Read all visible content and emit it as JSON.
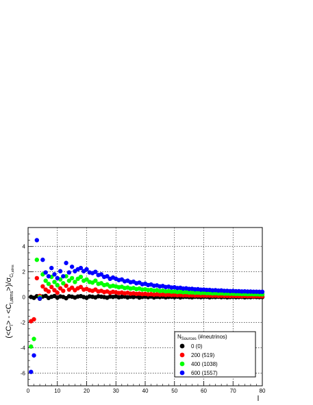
{
  "chart_data": {
    "type": "scatter",
    "xlabel": "l",
    "ylabel": {
      "main": "(<C",
      "sub1": "l",
      "mid": "> - <C",
      "sub2": "l,atms",
      "end": ">)/σ",
      "sub3": "C",
      "sub4": "l,atms"
    },
    "xlim": [
      0,
      80
    ],
    "ylim": [
      -7,
      5.5
    ],
    "x_ticks": [
      0,
      10,
      20,
      30,
      40,
      50,
      60,
      70,
      80
    ],
    "y_ticks": [
      -6,
      -4,
      -2,
      0,
      2,
      4
    ],
    "grid": true,
    "legend": {
      "placement": "bottom-right",
      "header_main": "N",
      "header_sub": "Sources",
      "header_rest": " (#neutrinos)"
    },
    "series": [
      {
        "name": "0 (0)",
        "color": "#000000",
        "x": [
          1,
          2,
          3,
          4,
          5,
          6,
          7,
          8,
          9,
          10,
          11,
          12,
          13,
          14,
          15,
          16,
          17,
          18,
          19,
          20,
          21,
          22,
          23,
          24,
          25,
          26,
          27,
          28,
          29,
          30,
          31,
          32,
          33,
          34,
          35,
          36,
          37,
          38,
          39,
          40,
          41,
          42,
          43,
          44,
          45,
          46,
          47,
          48,
          49,
          50,
          51,
          52,
          53,
          54,
          55,
          56,
          57,
          58,
          59,
          60,
          61,
          62,
          63,
          64,
          65,
          66,
          67,
          68,
          69,
          70,
          71,
          72,
          73,
          74,
          75,
          76,
          77,
          78,
          79,
          80
        ],
        "y": [
          0.02,
          -0.05,
          0.08,
          -0.12,
          0.05,
          0.1,
          -0.06,
          0.03,
          0.09,
          -0.04,
          0.06,
          0.02,
          -0.08,
          0.07,
          0.04,
          -0.03,
          0.05,
          0.08,
          0.01,
          -0.05,
          0.06,
          0.03,
          -0.02,
          0.07,
          0.04,
          0.01,
          -0.04,
          0.05,
          0.02,
          0.06,
          -0.01,
          0.03,
          0.05,
          -0.02,
          0.04,
          0.01,
          0.06,
          -0.03,
          0.02,
          0.04,
          0.0,
          0.05,
          -0.02,
          0.03,
          0.01,
          0.04,
          -0.01,
          0.02,
          0.03,
          0.0,
          0.04,
          -0.02,
          0.02,
          0.03,
          0.01,
          -0.01,
          0.03,
          0.02,
          0.0,
          0.02,
          0.03,
          -0.01,
          0.02,
          0.01,
          0.03,
          0.0,
          0.02,
          -0.01,
          0.01,
          0.02,
          0.0,
          0.01,
          0.02,
          -0.01,
          0.01,
          0.0,
          0.02,
          0.01,
          0.0,
          0.01
        ]
      },
      {
        "name": "200 (519)",
        "color": "#ff0000",
        "x": [
          1,
          2,
          3,
          4,
          5,
          6,
          7,
          8,
          9,
          10,
          11,
          12,
          13,
          14,
          15,
          16,
          17,
          18,
          19,
          20,
          21,
          22,
          23,
          24,
          25,
          26,
          27,
          28,
          29,
          30,
          31,
          32,
          33,
          34,
          35,
          36,
          37,
          38,
          39,
          40,
          41,
          42,
          43,
          44,
          45,
          46,
          47,
          48,
          49,
          50,
          51,
          52,
          53,
          54,
          55,
          56,
          57,
          58,
          59,
          60,
          61,
          62,
          63,
          64,
          65,
          66,
          67,
          68,
          69,
          70,
          71,
          72,
          73,
          74,
          75,
          76,
          77,
          78,
          79,
          80
        ],
        "y": [
          -1.9,
          -1.75,
          1.5,
          0.1,
          0.85,
          0.6,
          0.45,
          0.8,
          0.55,
          0.35,
          0.7,
          0.5,
          0.9,
          0.6,
          0.75,
          0.55,
          0.7,
          0.8,
          0.6,
          0.65,
          0.55,
          0.5,
          0.6,
          0.45,
          0.5,
          0.4,
          0.45,
          0.35,
          0.42,
          0.38,
          0.33,
          0.36,
          0.3,
          0.34,
          0.28,
          0.3,
          0.26,
          0.28,
          0.24,
          0.26,
          0.22,
          0.24,
          0.2,
          0.22,
          0.19,
          0.21,
          0.18,
          0.2,
          0.17,
          0.18,
          0.16,
          0.17,
          0.15,
          0.16,
          0.14,
          0.15,
          0.13,
          0.14,
          0.12,
          0.13,
          0.12,
          0.12,
          0.11,
          0.12,
          0.1,
          0.11,
          0.1,
          0.1,
          0.09,
          0.1,
          0.09,
          0.09,
          0.08,
          0.09,
          0.08,
          0.08,
          0.07,
          0.08,
          0.07,
          0.07
        ]
      },
      {
        "name": "400 (1038)",
        "color": "#00ff00",
        "x": [
          1,
          2,
          3,
          4,
          5,
          6,
          7,
          8,
          9,
          10,
          11,
          12,
          13,
          14,
          15,
          16,
          17,
          18,
          19,
          20,
          21,
          22,
          23,
          24,
          25,
          26,
          27,
          28,
          29,
          30,
          31,
          32,
          33,
          34,
          35,
          36,
          37,
          38,
          39,
          40,
          41,
          42,
          43,
          44,
          45,
          46,
          47,
          48,
          49,
          50,
          51,
          52,
          53,
          54,
          55,
          56,
          57,
          58,
          59,
          60,
          61,
          62,
          63,
          64,
          65,
          66,
          67,
          68,
          69,
          70,
          71,
          72,
          73,
          74,
          75,
          76,
          77,
          78,
          79,
          80
        ],
        "y": [
          -3.9,
          -3.3,
          2.95,
          0.0,
          1.8,
          1.3,
          1.05,
          1.6,
          1.2,
          0.95,
          1.4,
          1.1,
          1.65,
          1.3,
          1.5,
          1.2,
          1.45,
          1.6,
          1.3,
          1.4,
          1.2,
          1.15,
          1.3,
          1.05,
          1.1,
          0.95,
          1.0,
          0.85,
          0.9,
          0.85,
          0.78,
          0.82,
          0.72,
          0.76,
          0.68,
          0.72,
          0.64,
          0.68,
          0.6,
          0.62,
          0.56,
          0.58,
          0.52,
          0.55,
          0.49,
          0.51,
          0.46,
          0.48,
          0.44,
          0.45,
          0.41,
          0.43,
          0.39,
          0.4,
          0.37,
          0.38,
          0.35,
          0.36,
          0.33,
          0.34,
          0.32,
          0.32,
          0.3,
          0.31,
          0.29,
          0.3,
          0.28,
          0.28,
          0.27,
          0.27,
          0.26,
          0.26,
          0.25,
          0.25,
          0.24,
          0.24,
          0.23,
          0.23,
          0.22,
          0.22
        ]
      },
      {
        "name": "600 (1557)",
        "color": "#0000ff",
        "x": [
          1,
          2,
          3,
          4,
          5,
          6,
          7,
          8,
          9,
          10,
          11,
          12,
          13,
          14,
          15,
          16,
          17,
          18,
          19,
          20,
          21,
          22,
          23,
          24,
          25,
          26,
          27,
          28,
          29,
          30,
          31,
          32,
          33,
          34,
          35,
          36,
          37,
          38,
          39,
          40,
          41,
          42,
          43,
          44,
          45,
          46,
          47,
          48,
          49,
          50,
          51,
          52,
          53,
          54,
          55,
          56,
          57,
          58,
          59,
          60,
          61,
          62,
          63,
          64,
          65,
          66,
          67,
          68,
          69,
          70,
          71,
          72,
          73,
          74,
          75,
          76,
          77,
          78,
          79,
          80
        ],
        "y": [
          -5.9,
          -4.6,
          4.5,
          -0.1,
          2.95,
          1.95,
          1.65,
          2.3,
          1.8,
          1.5,
          2.05,
          1.65,
          2.7,
          1.95,
          2.4,
          2.05,
          2.2,
          2.3,
          2.05,
          2.2,
          1.95,
          1.9,
          2.0,
          1.75,
          1.8,
          1.6,
          1.65,
          1.45,
          1.55,
          1.45,
          1.35,
          1.4,
          1.25,
          1.3,
          1.18,
          1.22,
          1.1,
          1.15,
          1.02,
          1.06,
          0.96,
          1.0,
          0.9,
          0.93,
          0.85,
          0.88,
          0.8,
          0.83,
          0.76,
          0.78,
          0.72,
          0.74,
          0.68,
          0.7,
          0.65,
          0.66,
          0.62,
          0.63,
          0.59,
          0.6,
          0.57,
          0.57,
          0.54,
          0.55,
          0.52,
          0.53,
          0.5,
          0.5,
          0.48,
          0.49,
          0.47,
          0.47,
          0.45,
          0.46,
          0.44,
          0.44,
          0.43,
          0.43,
          0.42,
          0.42
        ]
      }
    ]
  }
}
